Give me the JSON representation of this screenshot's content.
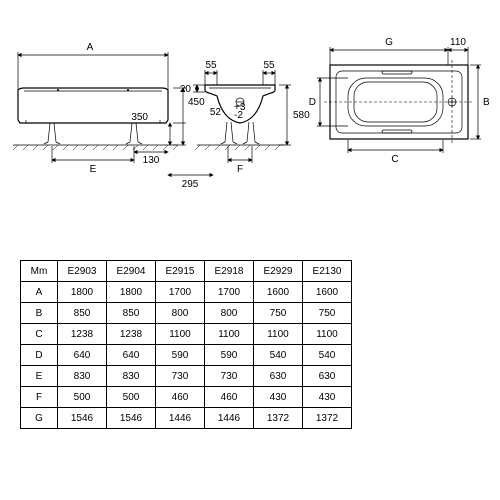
{
  "diagram": {
    "side": {
      "A": "A",
      "E": "E",
      "h350": "350",
      "h450": "450",
      "h130": "130",
      "h295": "295"
    },
    "end": {
      "F": "F",
      "h55": "55",
      "h20": "20",
      "h580": "580",
      "h52": "52",
      "hplus3": "+3",
      "hminus2": "-2"
    },
    "top": {
      "G": "G",
      "B": "B",
      "C": "C",
      "D": "D",
      "h110": "110"
    }
  },
  "table": {
    "header": [
      "Mm",
      "E2903",
      "E2904",
      "E2915",
      "E2918",
      "E2929",
      "E2130"
    ],
    "rows": [
      [
        "A",
        "1800",
        "1800",
        "1700",
        "1700",
        "1600",
        "1600"
      ],
      [
        "B",
        "850",
        "850",
        "800",
        "800",
        "750",
        "750"
      ],
      [
        "C",
        "1238",
        "1238",
        "1100",
        "1100",
        "1100",
        "1100"
      ],
      [
        "D",
        "640",
        "640",
        "590",
        "590",
        "540",
        "540"
      ],
      [
        "E",
        "830",
        "830",
        "730",
        "730",
        "630",
        "630"
      ],
      [
        "F",
        "500",
        "500",
        "460",
        "460",
        "430",
        "430"
      ],
      [
        "G",
        "1546",
        "1546",
        "1446",
        "1446",
        "1372",
        "1372"
      ]
    ]
  },
  "style": {
    "line_color": "#000000",
    "bg": "#ffffff",
    "font_size_labels": 10,
    "font_size_table": 10
  }
}
